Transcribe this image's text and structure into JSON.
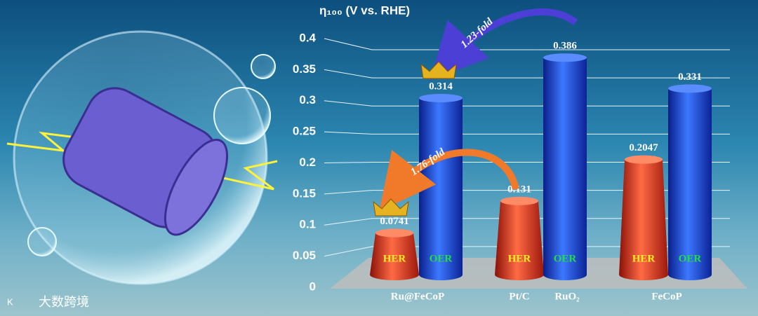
{
  "chart_data": {
    "type": "bar",
    "title": "η₁₀₀ (V vs. RHE)",
    "categories": [
      "Ru@FeCoP",
      "Pt/C",
      "RuO₂",
      "FeCoP"
    ],
    "series": [
      {
        "name": "HER",
        "color": "#d8321e",
        "values": [
          0.0741,
          0.131,
          null,
          0.2047
        ]
      },
      {
        "name": "OER",
        "color": "#1e4fe6",
        "values": [
          0.314,
          null,
          0.386,
          0.331
        ]
      }
    ],
    "ylim": [
      0,
      0.4
    ],
    "yticks": [
      0,
      0.05,
      0.1,
      0.15,
      0.2,
      0.25,
      0.3,
      0.35,
      0.4
    ],
    "grid": true,
    "annotations": [
      "1.23-fold",
      "1.76-fold"
    ]
  },
  "watermark": "大数跨境"
}
